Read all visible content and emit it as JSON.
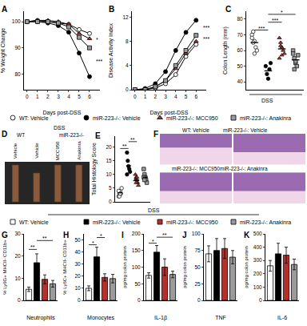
{
  "chart_data": [
    {
      "panel": "A",
      "type": "line",
      "xlabel": "Days post-DSS",
      "ylabel": "% Weight Change",
      "legend": "bottom",
      "x": [
        0,
        1,
        2,
        3,
        4,
        5,
        6
      ],
      "xlim": [
        -0.3,
        7
      ],
      "xticks": [
        0,
        1,
        2,
        3,
        4,
        5,
        6
      ],
      "ylim": [
        74,
        104
      ],
      "yticks": [
        80,
        90,
        100
      ],
      "series": [
        {
          "name": "WT: Vehicle",
          "color": "#ffffff",
          "marker": "circle",
          "values": [
            100,
            100.5,
            100,
            99.5,
            99,
            97,
            95.5
          ]
        },
        {
          "name": "miR-223-/-: Vehicle",
          "color": "#000000",
          "marker": "circle",
          "values": [
            100,
            100,
            99.5,
            98.5,
            96,
            88,
            79
          ]
        },
        {
          "name": "miR-223-/-: MCC950",
          "color": "#b5302b",
          "marker": "triangle",
          "values": [
            100,
            100.5,
            100.5,
            100,
            99,
            95.5,
            93.5
          ]
        },
        {
          "name": "miR-223-/-: Anakinra",
          "color": "#9b9b9b",
          "marker": "square",
          "values": [
            100,
            100,
            100,
            99.5,
            98,
            94,
            90
          ]
        }
      ],
      "annotations": [
        {
          "text": "***",
          "x": 6.5,
          "y": 85
        },
        {
          "text": "*",
          "x": 6.5,
          "y": 93
        }
      ]
    },
    {
      "panel": "B",
      "type": "line",
      "xlabel": "Days post-DSS",
      "ylabel": "Disease Activity Index",
      "x": [
        0,
        1,
        2,
        3,
        4,
        5,
        6
      ],
      "xlim": [
        -0.3,
        7
      ],
      "xticks": [
        0,
        1,
        2,
        3,
        4,
        5,
        6
      ],
      "ylim": [
        0,
        13
      ],
      "yticks": [
        0,
        4,
        8,
        12
      ],
      "series": [
        {
          "name": "WT: Vehicle",
          "color": "#ffffff",
          "marker": "circle",
          "values": [
            0,
            0,
            0.3,
            1,
            2.5,
            5.5,
            7.5
          ]
        },
        {
          "name": "miR-223-/-: Vehicle",
          "color": "#000000",
          "marker": "circle",
          "values": [
            0,
            0.2,
            1,
            3,
            6.5,
            9.5,
            11.5
          ]
        },
        {
          "name": "miR-223-/-: MCC950",
          "color": "#b5302b",
          "marker": "triangle",
          "values": [
            0,
            0,
            0.5,
            1.5,
            3.5,
            6,
            8
          ]
        },
        {
          "name": "miR-223-/-: Anakinra",
          "color": "#9b9b9b",
          "marker": "square",
          "values": [
            0,
            0,
            0.5,
            1.5,
            4,
            6.5,
            9
          ]
        }
      ],
      "annotations": [
        {
          "text": "***",
          "x": 6.5,
          "y": 10.3
        },
        {
          "text": "***",
          "x": 6.5,
          "y": 8.4
        }
      ]
    },
    {
      "panel": "C",
      "type": "dot",
      "ylabel": "Colon Length (mm)",
      "x_label": "DSS",
      "tick_labels": "y",
      "ylim": [
        35,
        85
      ],
      "yticks": [
        40,
        50,
        60,
        70,
        80
      ],
      "series": [
        {
          "name": "WT: Vehicle",
          "color": "#ffffff",
          "marker": "circle",
          "values": [
            70,
            72,
            66,
            62,
            60,
            68,
            65,
            58
          ],
          "mean": 65
        },
        {
          "name": "miR-223-/-: Vehicle",
          "color": "#000000",
          "marker": "circle",
          "values": [
            50,
            45,
            42,
            48,
            52
          ],
          "mean": 47
        },
        {
          "name": "miR-223-/-: MCC950",
          "color": "#b5302b",
          "marker": "triangle",
          "values": [
            68,
            65,
            62,
            60,
            58,
            55,
            63,
            57
          ],
          "mean": 61
        },
        {
          "name": "miR-223-/-: Anakinra",
          "color": "#9b9b9b",
          "marker": "square",
          "values": [
            60,
            55,
            52,
            50,
            57,
            58,
            48,
            53
          ],
          "mean": 54
        }
      ],
      "brackets": [
        {
          "from": "WT: Vehicle",
          "to": "miR-223-/-: Vehicle",
          "y": 73,
          "text": "***"
        },
        {
          "from": "miR-223-/-: Vehicle",
          "to": "miR-223-/-: MCC950",
          "y": 78,
          "text": "***"
        },
        {
          "from": "miR-223-/-: Vehicle",
          "to": "miR-223-/-: Anakinra",
          "y": 83,
          "text": "*"
        }
      ]
    },
    {
      "panel": "D",
      "type": "image",
      "header": "DSS",
      "groups": [
        {
          "label": "WT",
          "columns": [
            "Vehicle"
          ]
        },
        {
          "label": "miR-223-/-",
          "columns": [
            "Vehicle",
            "MCC950",
            "Anakinra"
          ]
        }
      ]
    },
    {
      "panel": "E",
      "type": "dot",
      "ylabel": "Total Histology Score",
      "tick_labels": "y",
      "ylim": [
        0,
        24
      ],
      "yticks": [
        0,
        5,
        10,
        15,
        20
      ],
      "series": [
        {
          "name": "WT: Vehicle",
          "color": "#ffffff",
          "marker": "circle",
          "values": [
            2,
            3,
            4,
            3,
            5,
            4,
            2,
            3
          ],
          "mean": 3.3
        },
        {
          "name": "miR-223-/-: Vehicle",
          "color": "#000000",
          "marker": "circle",
          "values": [
            18,
            15,
            13,
            12,
            11,
            10
          ],
          "mean": 13.2
        },
        {
          "name": "miR-223-/-: MCC950",
          "color": "#b5302b",
          "marker": "triangle",
          "values": [
            10,
            9,
            8,
            7,
            6,
            8,
            7,
            9
          ],
          "mean": 8
        },
        {
          "name": "miR-223-/-: Anakinra",
          "color": "#9b9b9b",
          "marker": "square",
          "values": [
            12,
            10,
            9,
            8,
            7,
            9,
            8
          ],
          "mean": 9
        }
      ],
      "brackets": [
        {
          "from": "WT: Vehicle",
          "to": "miR-223-/-: Vehicle",
          "y": 19.5,
          "text": "**"
        },
        {
          "from": "miR-223-/-: Vehicle",
          "to": "miR-223-/-: MCC950",
          "y": 22,
          "text": "**"
        }
      ]
    },
    {
      "panel": "F",
      "type": "image",
      "titles": [
        "WT: Vehicle",
        "miR-223-/-: Vehicle",
        "miR-223-/-: MCC950",
        "miR-223-/-: Anakinra"
      ]
    },
    {
      "panel": "G",
      "type": "bar",
      "xlabel": "Neutrophils",
      "ylabel": "% Ly6G+ MHCII- CD11b+",
      "tick_labels": "y",
      "legend": "top",
      "legend_title": "DSS",
      "categories": [
        "WT: Vehicle",
        "miR-223-/-: Vehicle",
        "miR-223-/-: MCC950",
        "miR-223-/-: Anakinra"
      ],
      "colors": [
        "#ffffff",
        "#000000",
        "#b5302b",
        "#9b9b9b"
      ],
      "values": [
        5,
        17,
        9.5,
        7.5
      ],
      "errors": [
        1,
        4,
        2,
        1.5
      ],
      "ylim": [
        0,
        30
      ],
      "yticks": [
        0,
        10,
        20,
        30
      ],
      "brackets": [
        {
          "from": "WT: Vehicle",
          "to": "miR-223-/-: Vehicle",
          "y": 23,
          "text": "**"
        },
        {
          "from": "miR-223-/-: Vehicle",
          "to": "miR-223-/-: Anakinra",
          "y": 27,
          "text": "**"
        }
      ]
    },
    {
      "panel": "H",
      "type": "bar",
      "xlabel": "Monocytes",
      "ylabel": "% Ly6C+ MHCII- CD11b+",
      "tick_labels": "y",
      "categories": [
        "WT: Vehicle",
        "miR-223-/-: Vehicle",
        "miR-223-/-: MCC950",
        "miR-223-/-: Anakinra"
      ],
      "colors": [
        "#ffffff",
        "#000000",
        "#b5302b",
        "#9b9b9b"
      ],
      "values": [
        10,
        36,
        19,
        18
      ],
      "errors": [
        2,
        8,
        3,
        3.5
      ],
      "ylim": [
        0,
        55
      ],
      "yticks": [
        0,
        10,
        20,
        30,
        40,
        50
      ],
      "brackets": [
        {
          "from": "WT: Vehicle",
          "to": "miR-223-/-: Vehicle",
          "y": 46,
          "text": "*"
        },
        {
          "from": "miR-223-/-: Vehicle",
          "to": "miR-223-/-: MCC950",
          "y": 52,
          "text": "*"
        }
      ]
    },
    {
      "panel": "I",
      "type": "bar",
      "xlabel": "IL-1β",
      "ylabel": "pg/mg colon protein",
      "tick_labels": "y",
      "categories": [
        "WT: Vehicle",
        "miR-223-/-: Vehicle",
        "miR-223-/-: MCC950",
        "miR-223-/-: Anakinra"
      ],
      "colors": [
        "#ffffff",
        "#000000",
        "#b5302b",
        "#9b9b9b"
      ],
      "values": [
        75,
        145,
        100,
        78
      ],
      "errors": [
        8,
        20,
        25,
        10
      ],
      "ylim": [
        0,
        200
      ],
      "yticks": [
        0,
        50,
        100,
        150,
        200
      ],
      "brackets": [
        {
          "from": "WT: Vehicle",
          "to": "miR-223-/-: Vehicle",
          "y": 172,
          "text": "*"
        },
        {
          "from": "miR-223-/-: Vehicle",
          "to": "miR-223-/-: Anakinra",
          "y": 190,
          "text": "**"
        }
      ]
    },
    {
      "panel": "J",
      "type": "bar",
      "xlabel": "TNF",
      "ylabel": "pg/mg colon protein",
      "tick_labels": "y",
      "categories": [
        "WT: Vehicle",
        "miR-223-/-: Vehicle",
        "miR-223-/-: MCC950",
        "miR-223-/-: Anakinra"
      ],
      "colors": [
        "#ffffff",
        "#000000",
        "#b5302b",
        "#9b9b9b"
      ],
      "values": [
        70,
        75,
        78,
        65
      ],
      "errors": [
        12,
        18,
        15,
        10
      ],
      "ylim": [
        0,
        100
      ],
      "yticks": [
        0,
        25,
        50,
        75,
        100
      ]
    },
    {
      "panel": "K",
      "type": "bar",
      "xlabel": "IL-6",
      "ylabel": "pg/mg colon protein",
      "tick_labels": "y",
      "categories": [
        "WT: Vehicle",
        "miR-223-/-: Vehicle",
        "miR-223-/-: MCC950",
        "miR-223-/-: Anakinra"
      ],
      "colors": [
        "#ffffff",
        "#000000",
        "#b5302b",
        "#9b9b9b"
      ],
      "values": [
        260,
        350,
        340,
        270
      ],
      "errors": [
        40,
        80,
        60,
        40
      ],
      "ylim": [
        0,
        500
      ],
      "yticks": [
        0,
        100,
        200,
        300,
        400,
        500
      ]
    }
  ]
}
